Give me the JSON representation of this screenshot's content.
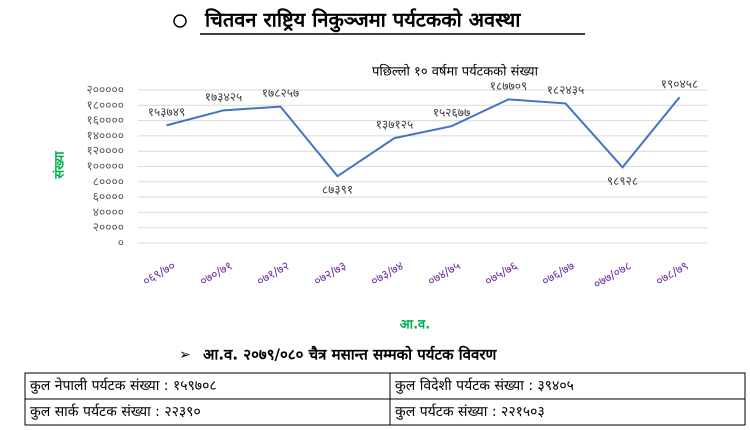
{
  "heading": "चितवन राष्ट्रिय निकुञ्जमा पर्यटकको अवस्था",
  "chart_data": {
    "type": "line",
    "title": "पछिल्लो १० वर्षमा  पर्यटकको संख्या",
    "x_label": "आ.व.",
    "y_label": "संख्या",
    "categories": [
      "०६९/७०",
      "०७०/७१",
      "०७१/७२",
      "०७२/७३",
      "०७३/७४",
      "०७४/७५",
      "०७५/७६",
      "०७६/७७",
      "०७७/०७८",
      "०७८/७९"
    ],
    "values": [
      153749,
      173425,
      178257,
      87391,
      137125,
      152677,
      187709,
      182435,
      98928,
      190458
    ],
    "value_labels": [
      "१५३७४९",
      "१७३४२५",
      "१७८२५७",
      "८७३९१",
      "१३७१२५",
      "१५२६७७",
      "१८७७०९",
      "१८२४३५",
      "९८९२८",
      "१९०४५८"
    ],
    "color": "#4472c4",
    "ylim": [
      0,
      200000
    ],
    "yticks": [
      {
        "value": 0,
        "label": "०"
      },
      {
        "value": 20000,
        "label": "२००००"
      },
      {
        "value": 40000,
        "label": "४००००"
      },
      {
        "value": 60000,
        "label": "६००००"
      },
      {
        "value": 80000,
        "label": "८००००"
      },
      {
        "value": 100000,
        "label": "१०००००"
      },
      {
        "value": 120000,
        "label": "१२००००"
      },
      {
        "value": 140000,
        "label": "१४००००"
      },
      {
        "value": 160000,
        "label": "१६००००"
      },
      {
        "value": 180000,
        "label": "१८००००"
      },
      {
        "value": 200000,
        "label": "२०००००"
      }
    ],
    "grid": true
  },
  "summary": {
    "title": "आ.व. २०७९/०८० चैत्र मसान्त सम्मको पर्यटक विवरण",
    "rows": [
      [
        "कुल नेपाली पर्यटक संख्या : १५९७०८",
        "कुल विदेशी पर्यटक संख्या : ३९४०५"
      ],
      [
        "कुल सार्क पर्यटक संख्या : २२३९०",
        "कुल पर्यटक संख्या : २२१५०३"
      ]
    ]
  }
}
